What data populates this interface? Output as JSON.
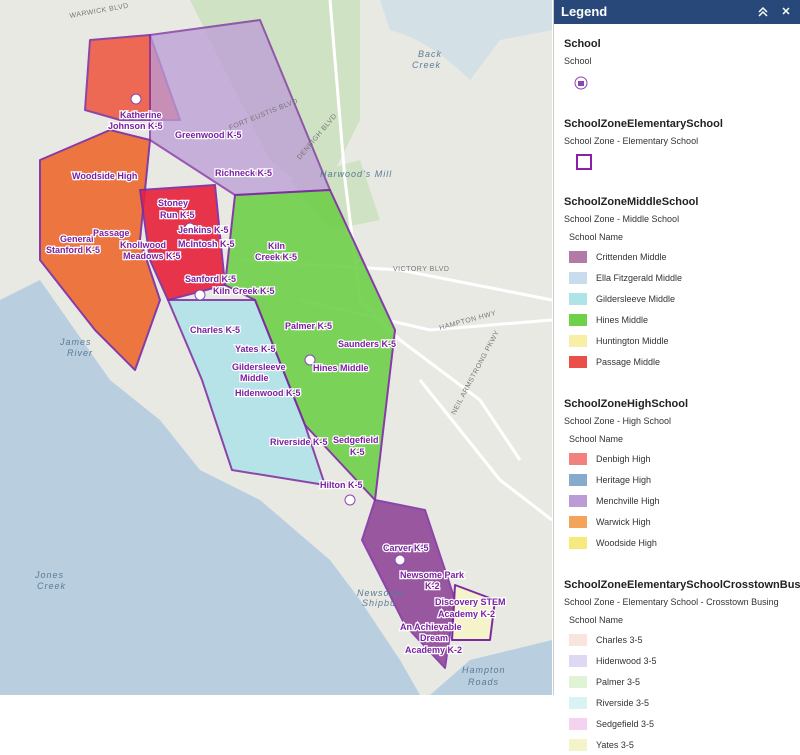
{
  "legend": {
    "title": "Legend",
    "layers": [
      {
        "title": "School",
        "subtitle": "School",
        "symbol": "icon"
      },
      {
        "title": "SchoolZoneElementarySchool",
        "subtitle": "School Zone - Elementary School",
        "symbol": "outline"
      },
      {
        "title": "SchoolZoneMiddleSchool",
        "subtitle": "School Zone - Middle School",
        "field": "School Name",
        "items": [
          {
            "label": "Crittenden Middle",
            "color": "#b27aa6"
          },
          {
            "label": "Ella Fitzgerald Middle",
            "color": "#c8dced"
          },
          {
            "label": "Gildersleeve Middle",
            "color": "#aee3e8"
          },
          {
            "label": "Hines Middle",
            "color": "#6fd04a"
          },
          {
            "label": "Huntington Middle",
            "color": "#f7efa6"
          },
          {
            "label": "Passage Middle",
            "color": "#ea4f4a"
          }
        ]
      },
      {
        "title": "SchoolZoneHighSchool",
        "subtitle": "School Zone - High School",
        "field": "School Name",
        "items": [
          {
            "label": "Denbigh High",
            "color": "#f2807c"
          },
          {
            "label": "Heritage High",
            "color": "#86abcc"
          },
          {
            "label": "Menchville High",
            "color": "#bb9cd6"
          },
          {
            "label": "Warwick High",
            "color": "#f4a35a"
          },
          {
            "label": "Woodside High",
            "color": "#f6ea7e"
          }
        ]
      },
      {
        "title": "SchoolZoneElementarySchoolCrosstownBusing",
        "subtitle": "School Zone - Elementary School - Crosstown Busing",
        "field": "School Name",
        "items": [
          {
            "label": "Charles 3-5",
            "color": "#f8e6de"
          },
          {
            "label": "Hidenwood 3-5",
            "color": "#ded8f3"
          },
          {
            "label": "Palmer 3-5",
            "color": "#e0f3d4"
          },
          {
            "label": "Riverside 3-5",
            "color": "#d8f3f1"
          },
          {
            "label": "Sedgefield 3-5",
            "color": "#f4d2f0"
          },
          {
            "label": "Yates 3-5",
            "color": "#f4f3c9"
          }
        ]
      }
    ]
  },
  "map": {
    "places": [
      "Back",
      "Creek",
      "Harwood's Mill",
      "James",
      "River",
      "Jones",
      "Creek",
      "Hampton",
      "Roads",
      "Newsome",
      "Shipbu"
    ],
    "roads": [
      "FORT EUSTIS BLVD",
      "DENBIGH BLVD",
      "VICTORY BLVD",
      "HAMPTON HWY",
      "NEIL ARMSTRONG PKWY",
      "WARWICK BLVD"
    ],
    "schools": [
      "Katherine",
      "Johnson K-5",
      "Greenwood K-5",
      "Richneck K-5",
      "Woodside High",
      "General",
      "Stanford K-5",
      "Passage",
      "Stoney",
      "Run K-5",
      "Jenkins K-5",
      "Knollwood",
      "Meadows K-5",
      "McIntosh K-5",
      "Sanford K-5",
      "Kiln Creek K-5",
      "Kiln",
      "Creek K-5",
      "Charles K-5",
      "Yates K-5",
      "Palmer K-5",
      "Saunders K-5",
      "Hines Middle",
      "Hidenwood K-5",
      "Riverside K-5",
      "Sedgefield",
      "K-5",
      "Hilton K-5",
      "Carver K-5",
      "Newsome Park",
      "K-2",
      "Discovery STEM",
      "Academy K-2",
      "An Achievable",
      "Dream",
      "Academy K-2",
      "Gildersleeve",
      "Middle"
    ]
  }
}
